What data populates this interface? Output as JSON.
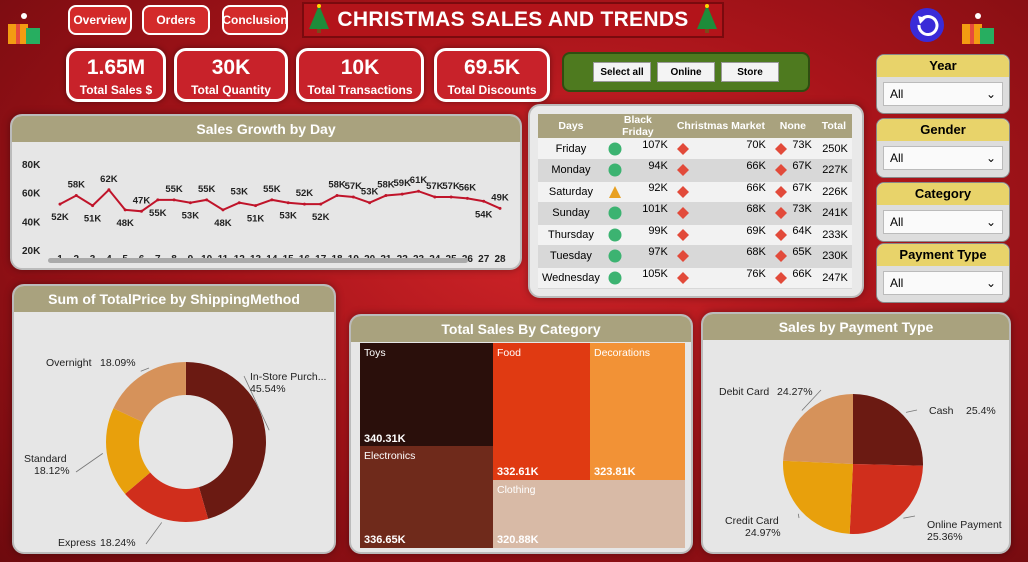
{
  "nav": {
    "overview": "Overview",
    "orders": "Orders",
    "conclusion": "Conclusion"
  },
  "title": "CHRISTMAS SALES AND TRENDS",
  "kpis": [
    {
      "value": "1.65M",
      "label": "Total Sales $"
    },
    {
      "value": "30K",
      "label": "Total Quantity"
    },
    {
      "value": "10K",
      "label": "Total Transactions"
    },
    {
      "value": "69.5K",
      "label": "Total Discounts"
    }
  ],
  "channel_slicer": [
    "Select all",
    "Online",
    "Store"
  ],
  "filters": [
    {
      "title": "Year",
      "value": "All"
    },
    {
      "title": "Gender",
      "value": "All"
    },
    {
      "title": "Category",
      "value": "All"
    },
    {
      "title": "Payment Type",
      "value": "All"
    }
  ],
  "colors": {
    "primary": "#c8222a",
    "header": "#a9a27e",
    "line": "#c0142a",
    "filter_head": "#e8d36a",
    "ok": "#3cb371",
    "warn": "#e8a020",
    "bad": "#e24a3a"
  },
  "growth": {
    "title": "Sales Growth by Day",
    "y_ticks": [
      "80K",
      "60K",
      "40K",
      "20K"
    ],
    "chart_data": {
      "type": "line",
      "ylim": [
        20,
        80
      ],
      "x": [
        1,
        2,
        3,
        4,
        5,
        6,
        7,
        8,
        9,
        10,
        11,
        12,
        13,
        14,
        15,
        16,
        17,
        18,
        19,
        20,
        21,
        22,
        23,
        24,
        25,
        26,
        27,
        28
      ],
      "values": [
        52,
        58,
        51,
        62,
        48,
        47,
        55,
        55,
        53,
        55,
        48,
        53,
        51,
        55,
        53,
        52,
        52,
        58,
        57,
        53,
        58,
        59,
        61,
        57,
        57,
        56,
        54,
        49
      ],
      "labels": [
        "52K",
        "58K",
        "51K",
        "62K",
        "48K",
        "47K",
        "55K",
        "55K",
        "53K",
        "55K",
        "48K",
        "53K",
        "51K",
        "55K",
        "53K",
        "52K",
        "52K",
        "58K",
        "57K",
        "53K",
        "58K",
        "59K",
        "61K",
        "57K",
        "57K",
        "56K",
        "54K",
        "49K"
      ]
    }
  },
  "matrix": {
    "headers": [
      "Days",
      "Black Friday",
      "Christmas Market",
      "None",
      "Total"
    ],
    "rows": [
      {
        "day": "Friday",
        "bf_icon": "circle",
        "bf": "107K",
        "cm_icon": "diamond",
        "cm": "70K",
        "none_icon": "diamond",
        "none": "73K",
        "total": "250K"
      },
      {
        "day": "Monday",
        "bf_icon": "circle",
        "bf": "94K",
        "cm_icon": "diamond",
        "cm": "66K",
        "none_icon": "diamond",
        "none": "67K",
        "total": "227K"
      },
      {
        "day": "Saturday",
        "bf_icon": "triangle",
        "bf": "92K",
        "cm_icon": "diamond",
        "cm": "66K",
        "none_icon": "diamond",
        "none": "67K",
        "total": "226K"
      },
      {
        "day": "Sunday",
        "bf_icon": "circle",
        "bf": "101K",
        "cm_icon": "diamond",
        "cm": "68K",
        "none_icon": "diamond",
        "none": "73K",
        "total": "241K"
      },
      {
        "day": "Thursday",
        "bf_icon": "circle",
        "bf": "99K",
        "cm_icon": "diamond",
        "cm": "69K",
        "none_icon": "diamond",
        "none": "64K",
        "total": "233K"
      },
      {
        "day": "Tuesday",
        "bf_icon": "circle",
        "bf": "97K",
        "cm_icon": "diamond",
        "cm": "68K",
        "none_icon": "diamond",
        "none": "65K",
        "total": "230K"
      },
      {
        "day": "Wednesday",
        "bf_icon": "circle",
        "bf": "105K",
        "cm_icon": "diamond",
        "cm": "76K",
        "none_icon": "diamond",
        "none": "66K",
        "total": "247K"
      }
    ]
  },
  "shipping": {
    "title": "Sum of TotalPrice by ShippingMethod",
    "chart_data": {
      "type": "pie",
      "donut": true,
      "slices": [
        {
          "name": "In-Store Purch...",
          "pct": 45.54,
          "label": "45.54%",
          "color": "#6b1a12"
        },
        {
          "name": "Express",
          "pct": 18.24,
          "label": "18.24%",
          "color": "#d02e1c"
        },
        {
          "name": "Standard",
          "pct": 18.12,
          "label": "18.12%",
          "color": "#e8a00c"
        },
        {
          "name": "Overnight",
          "pct": 18.09,
          "label": "18.09%",
          "color": "#d6925a"
        }
      ]
    }
  },
  "category": {
    "title": "Total Sales By Category",
    "chart_data": {
      "type": "treemap",
      "items": [
        {
          "name": "Toys",
          "value": "340.31K",
          "color": "#2a0f0b"
        },
        {
          "name": "Electronics",
          "value": "336.65K",
          "color": "#6f2a1b"
        },
        {
          "name": "Food",
          "value": "332.61K",
          "color": "#e03a12"
        },
        {
          "name": "Decorations",
          "value": "323.81K",
          "color": "#f29236"
        },
        {
          "name": "Clothing",
          "value": "320.88K",
          "color": "#d8baa6"
        }
      ]
    }
  },
  "payment": {
    "title": "Sales by Payment Type",
    "chart_data": {
      "type": "pie",
      "slices": [
        {
          "name": "Cash",
          "pct": 25.4,
          "label": "25.4%",
          "color": "#6b1a12"
        },
        {
          "name": "Online Payment",
          "pct": 25.36,
          "label": "25.36%",
          "color": "#d02e1c"
        },
        {
          "name": "Credit Card",
          "pct": 24.97,
          "label": "24.97%",
          "color": "#e8a00c"
        },
        {
          "name": "Debit Card",
          "pct": 24.27,
          "label": "24.27%",
          "color": "#d6925a"
        }
      ]
    }
  }
}
